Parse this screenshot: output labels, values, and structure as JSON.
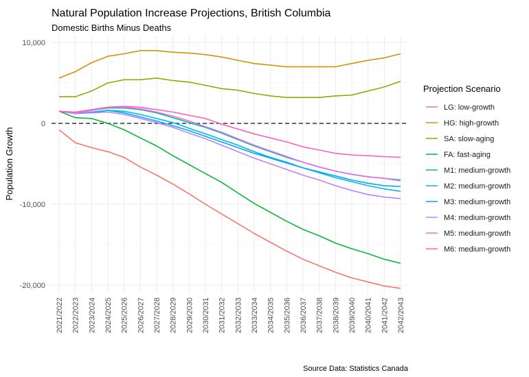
{
  "chart_data": {
    "type": "line",
    "title": "Natural Population Increase Projections, British Columbia",
    "subtitle": "Domestic Births Minus Deaths",
    "ylabel": "Population Growth",
    "xlabel": "",
    "caption": "Source Data: Statistics Canada",
    "legend_title": "Projection Scenario",
    "legend_position": "right",
    "grid": true,
    "ylim": [
      -21000,
      10500
    ],
    "y_ticks": [
      10000,
      0,
      -10000,
      -20000
    ],
    "y_tick_labels": [
      "10,000",
      "0",
      "-10,000",
      "-20,000"
    ],
    "reference_line": 0,
    "categories": [
      "2021/2022",
      "2022/2023",
      "2023/2024",
      "2024/2025",
      "2025/2026",
      "2026/2027",
      "2027/2028",
      "2028/2029",
      "2029/2030",
      "2030/2031",
      "2031/2032",
      "2032/2033",
      "2033/2034",
      "2034/2035",
      "2035/2036",
      "2036/2037",
      "2037/2038",
      "2038/2039",
      "2039/2040",
      "2040/2041",
      "2041/2042",
      "2042/2043"
    ],
    "series": [
      {
        "name": "LG: low-growth",
        "color": "#F8766D",
        "values": [
          -800,
          -2400,
          -3000,
          -3500,
          -4200,
          -5400,
          -6400,
          -7500,
          -8700,
          -10000,
          -11200,
          -12400,
          -13600,
          -14700,
          -15800,
          -16800,
          -17600,
          -18400,
          -19100,
          -19600,
          -20100,
          -20400
        ]
      },
      {
        "name": "HG: high-growth",
        "color": "#D39200",
        "values": [
          5600,
          6400,
          7500,
          8300,
          8600,
          9000,
          9000,
          8800,
          8700,
          8500,
          8200,
          7800,
          7400,
          7200,
          7000,
          7000,
          7000,
          7000,
          7400,
          7800,
          8100,
          8600
        ]
      },
      {
        "name": "SA: slow-aging",
        "color": "#93AA00",
        "values": [
          3300,
          3300,
          4000,
          5000,
          5400,
          5400,
          5600,
          5300,
          5100,
          4700,
          4300,
          4100,
          3700,
          3400,
          3200,
          3200,
          3200,
          3400,
          3500,
          4000,
          4500,
          5200
        ]
      },
      {
        "name": "FA: fast-aging",
        "color": "#00BA38",
        "values": [
          1500,
          700,
          600,
          0,
          -800,
          -1800,
          -2800,
          -4000,
          -5100,
          -6200,
          -7300,
          -8600,
          -9900,
          -11000,
          -12100,
          -13100,
          -13900,
          -14800,
          -15500,
          -16100,
          -16800,
          -17300
        ]
      },
      {
        "name": "M1: medium-growth",
        "color": "#00C19F",
        "values": [
          1500,
          1300,
          1600,
          1900,
          1900,
          1700,
          1300,
          700,
          100,
          -500,
          -1200,
          -2000,
          -2800,
          -3500,
          -4200,
          -4800,
          -5400,
          -5900,
          -6300,
          -6600,
          -6800,
          -7000
        ]
      },
      {
        "name": "M2: medium-growth",
        "color": "#00B9E3",
        "values": [
          1500,
          1200,
          1400,
          1600,
          1500,
          1100,
          600,
          100,
          -600,
          -1300,
          -2000,
          -2700,
          -3500,
          -4200,
          -4800,
          -5500,
          -6100,
          -6700,
          -7200,
          -7700,
          -8100,
          -8400
        ]
      },
      {
        "name": "M3: medium-growth",
        "color": "#00A5FF",
        "values": [
          1500,
          1300,
          1300,
          1600,
          1300,
          800,
          300,
          -300,
          -900,
          -1600,
          -2300,
          -3000,
          -3700,
          -4300,
          -4900,
          -5500,
          -6000,
          -6500,
          -7000,
          -7400,
          -7700,
          -7800
        ]
      },
      {
        "name": "M4: medium-growth",
        "color": "#B983FF",
        "values": [
          1500,
          1200,
          1300,
          1400,
          1100,
          600,
          100,
          -500,
          -1200,
          -1900,
          -2700,
          -3500,
          -4300,
          -5000,
          -5700,
          -6400,
          -7000,
          -7700,
          -8300,
          -8800,
          -9100,
          -9300
        ]
      },
      {
        "name": "M5: medium-growth",
        "color": "#E76BF3",
        "values": [
          1500,
          1300,
          1600,
          2000,
          2000,
          1800,
          1400,
          900,
          300,
          -400,
          -1100,
          -1900,
          -2700,
          -3400,
          -4100,
          -4800,
          -5400,
          -5900,
          -6300,
          -6600,
          -6800,
          -7100
        ]
      },
      {
        "name": "M6: medium-growth",
        "color": "#FF62BC",
        "values": [
          1500,
          1400,
          1700,
          2000,
          2100,
          2000,
          1700,
          1400,
          1000,
          600,
          -100,
          -700,
          -1300,
          -1800,
          -2300,
          -2900,
          -3300,
          -3700,
          -3900,
          -4000,
          -4100,
          -4200
        ]
      }
    ]
  }
}
